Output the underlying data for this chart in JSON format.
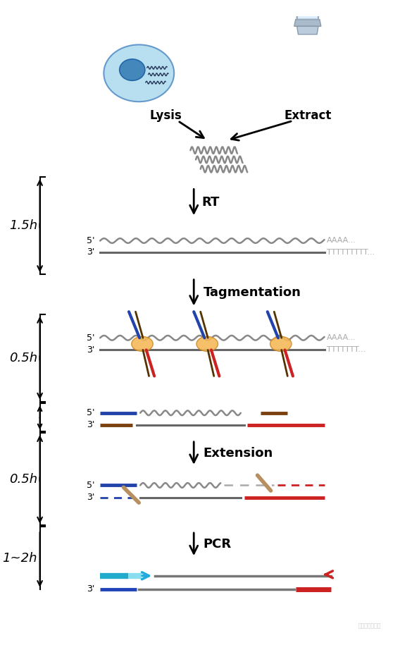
{
  "bg_color": "#ffffff",
  "times": [
    "1.5h",
    "0.5h",
    "0.5h",
    "1~2h"
  ],
  "label_lysis": "Lysis",
  "label_extract": "Extract",
  "label_AAAA": "AAAA...",
  "label_TTTT": "TTTTTTTTT...",
  "label_TTTT2": "TTTTTTT...",
  "wavy_color": "#888888",
  "strand_top_color": "#888888",
  "strand_bottom_color": "#666666",
  "blue_color": "#2244aa",
  "red_color": "#cc2222",
  "dark_red_color": "#880000",
  "cyan_color": "#22aadd",
  "cyan_light_color": "#88ddee",
  "tan_color": "#b89060",
  "brown_color": "#7a4010",
  "orange_color": "#f0a840",
  "time_font_size": 13,
  "step_font_size": 13,
  "label_font_size": 11,
  "prime_font_size": 9
}
